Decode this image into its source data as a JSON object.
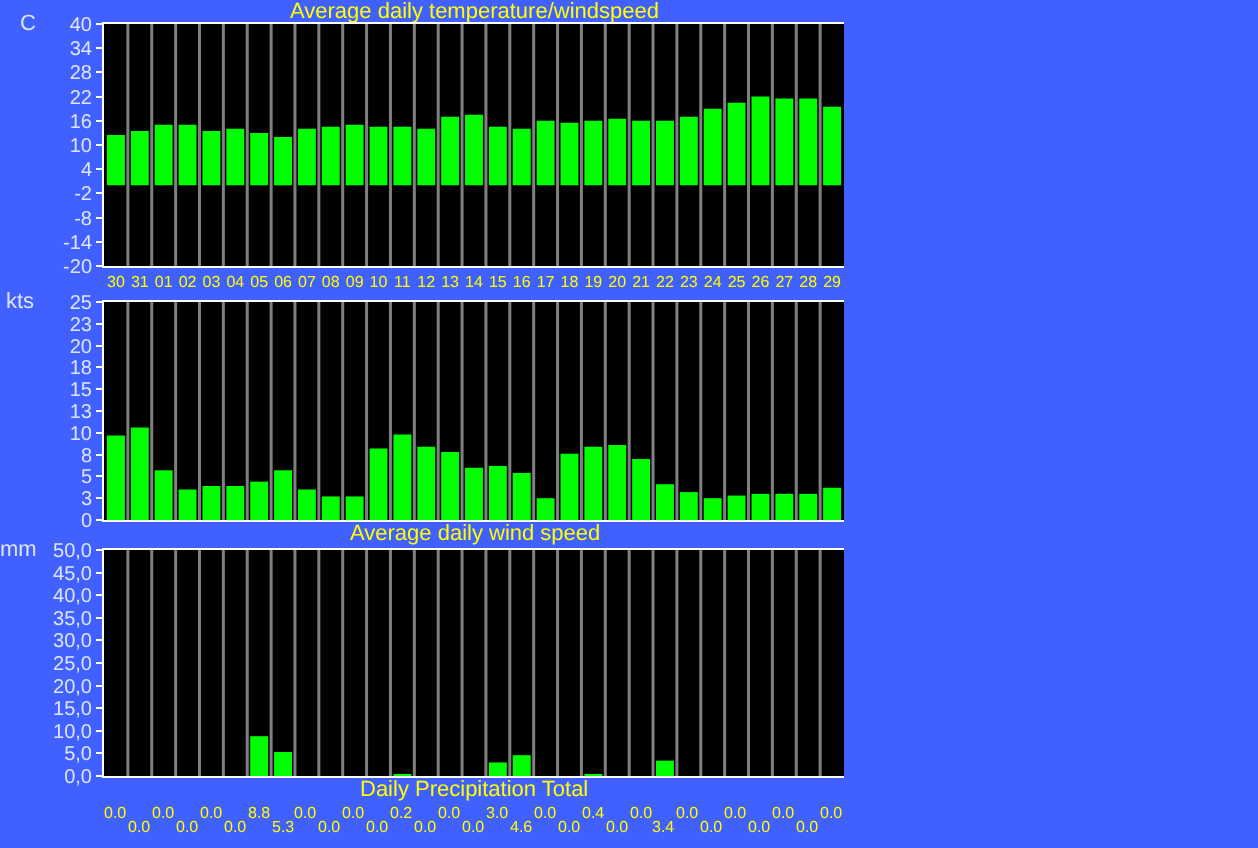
{
  "chart_data": [
    {
      "type": "bar",
      "title": "Average daily temperature/windspeed",
      "ylabel": "C",
      "categories": [
        "30",
        "31",
        "01",
        "02",
        "03",
        "04",
        "05",
        "06",
        "07",
        "08",
        "09",
        "10",
        "11",
        "12",
        "13",
        "14",
        "15",
        "16",
        "17",
        "18",
        "19",
        "20",
        "21",
        "22",
        "23",
        "24",
        "25",
        "26",
        "27",
        "28",
        "29"
      ],
      "values": [
        12.5,
        13.5,
        15,
        15,
        13.5,
        14,
        13,
        12,
        14,
        14.5,
        15,
        14.5,
        14.5,
        14,
        17,
        17.5,
        14.5,
        14,
        16,
        15.5,
        16,
        16.5,
        16,
        16,
        17,
        19,
        20.5,
        22,
        21.5,
        21.5,
        19.5
      ],
      "color": "#00ff00",
      "ylim": [
        -20,
        40
      ],
      "yticks": [
        -20,
        -14,
        -8,
        -2,
        4,
        10,
        16,
        22,
        28,
        34,
        40
      ],
      "grid": "x"
    },
    {
      "type": "bar",
      "ylabel": "kts",
      "xlabel": "Average daily wind speed",
      "categories": [
        "30",
        "31",
        "01",
        "02",
        "03",
        "04",
        "05",
        "06",
        "07",
        "08",
        "09",
        "10",
        "11",
        "12",
        "13",
        "14",
        "15",
        "16",
        "17",
        "18",
        "19",
        "20",
        "21",
        "22",
        "23",
        "24",
        "25",
        "26",
        "27",
        "28",
        "29"
      ],
      "values": [
        9.7,
        10.6,
        5.7,
        3.5,
        3.9,
        3.9,
        4.4,
        5.7,
        3.5,
        2.7,
        2.7,
        8.2,
        9.8,
        8.4,
        7.8,
        6,
        6.2,
        5.4,
        2.5,
        7.6,
        8.4,
        8.6,
        7,
        4.1,
        3.2,
        2.5,
        2.8,
        3,
        3,
        3,
        3.7
      ],
      "color": "#00ff00",
      "ylim": [
        0,
        25
      ],
      "yticks": [
        0,
        {
          "value": 2.5,
          "label": "3"
        },
        5,
        {
          "value": 7.5,
          "label": "8"
        },
        10,
        {
          "value": 12.5,
          "label": "13"
        },
        15,
        {
          "value": 17.5,
          "label": "18"
        },
        20,
        {
          "value": 22.5,
          "label": "23"
        },
        25
      ],
      "grid": "x",
      "tick_labels": "y"
    },
    {
      "type": "bar",
      "ylabel": "mm",
      "xlabel": "Daily Precipitation Total",
      "categories": [
        "30",
        "31",
        "01",
        "02",
        "03",
        "04",
        "05",
        "06",
        "07",
        "08",
        "09",
        "10",
        "11",
        "12",
        "13",
        "14",
        "15",
        "16",
        "17",
        "18",
        "19",
        "20",
        "21",
        "22",
        "23",
        "24",
        "25",
        "26",
        "27",
        "28",
        "29"
      ],
      "values": [
        0,
        0,
        0,
        0,
        0,
        0,
        8.8,
        5.3,
        0,
        0,
        0,
        0,
        0.2,
        0,
        0,
        0,
        3.0,
        4.6,
        0,
        0,
        0.4,
        0,
        0,
        3.4,
        0,
        0,
        0,
        0,
        0,
        0,
        0
      ],
      "color": "#00ff00",
      "value_labels": [
        "0.0",
        "0.0",
        "0.0",
        "0.0",
        "0.0",
        "0.0",
        "8.8",
        "5.3",
        "0.0",
        "0.0",
        "0.0",
        "0.0",
        "0.2",
        "0.0",
        "0.0",
        "0.0",
        "3.0",
        "4.6",
        "0.0",
        "0.0",
        "0.4",
        "0.0",
        "0.0",
        "3.4",
        "0.0",
        "0.0",
        "0.0",
        "0.0",
        "0.0",
        "0.0",
        "0.0"
      ],
      "ylim": [
        0,
        50
      ],
      "yticks": [
        {
          "value": 0,
          "label": "0,0"
        },
        {
          "value": 5,
          "label": "5,0"
        },
        {
          "value": 10,
          "label": "10,0"
        },
        {
          "value": 15,
          "label": "15,0"
        },
        {
          "value": 20,
          "label": "20,0"
        },
        {
          "value": 25,
          "label": "25,0"
        },
        {
          "value": 30,
          "label": "30,0"
        },
        {
          "value": 35,
          "label": "35,0"
        },
        {
          "value": 40,
          "label": "40,0"
        },
        {
          "value": 45,
          "label": "45,0"
        },
        {
          "value": 50,
          "label": "50,0"
        }
      ],
      "grid": "x",
      "tick_labels": "y"
    }
  ]
}
